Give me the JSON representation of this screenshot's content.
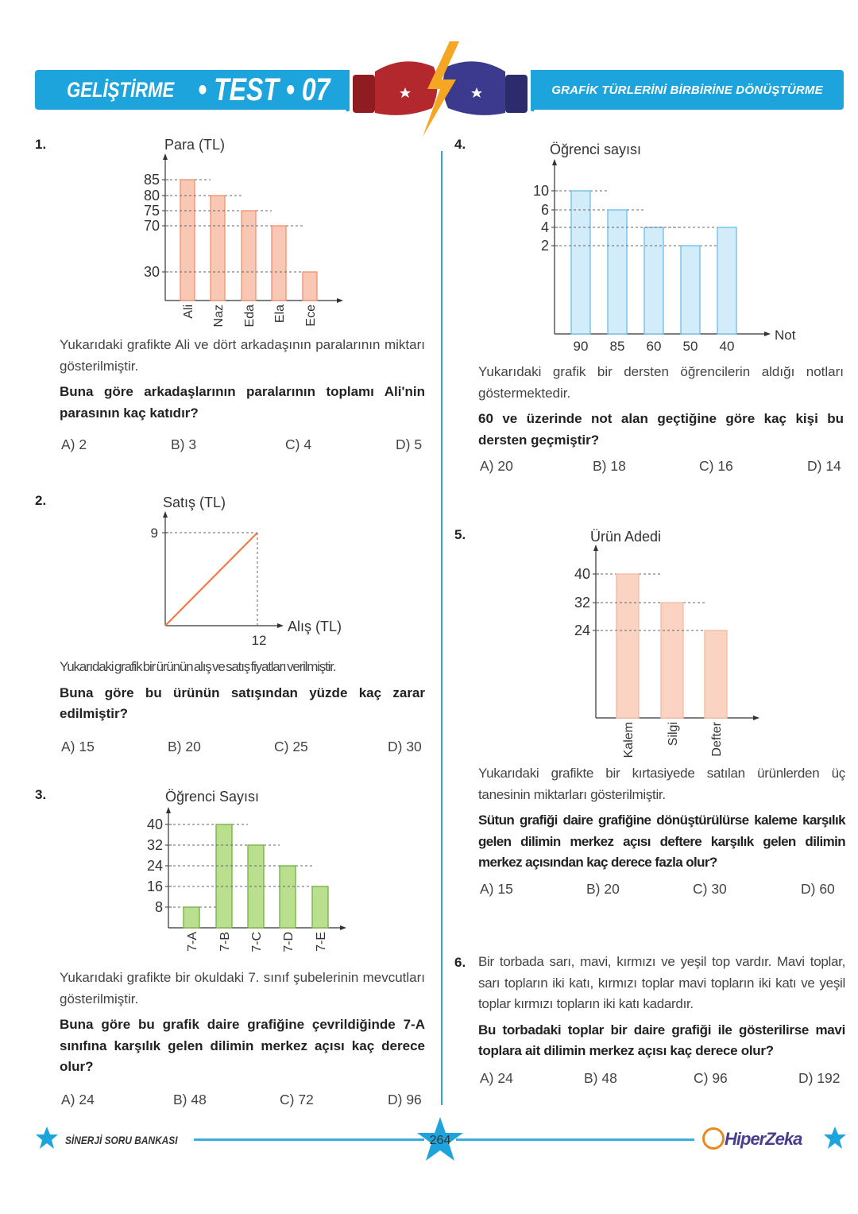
{
  "header": {
    "section": "GELİŞTİRME",
    "test": "• TEST • 07",
    "topic": "GRAFİK TÜRLERİNİ BİRBİRİNE DÖNÜŞTÜRME",
    "colors": {
      "band": "#1ea4dd",
      "glove_left": "#b3282d",
      "glove_right": "#3b3a8f",
      "bolt": "#f5a623"
    }
  },
  "questions": [
    {
      "number": "1.",
      "text": "Yukarıdaki grafikte Ali ve dört arkadaşının paralarının miktarı gösterilmiştir.",
      "question": "Buna göre arkadaşlarının paralarının toplamı Ali'nin parasının kaç katıdır?",
      "options": [
        "A) 2",
        "B) 3",
        "C) 4",
        "D) 5"
      ]
    },
    {
      "number": "2.",
      "text": "Yukarıdaki grafik bir ürünün alış ve satış fiyatları verilmiştir.",
      "question": "Buna göre bu ürünün satışından yüzde kaç zarar edilmiştir?",
      "options": [
        "A) 15",
        "B) 20",
        "C) 25",
        "D) 30"
      ]
    },
    {
      "number": "3.",
      "text": "Yukarıdaki grafikte bir okuldaki 7. sınıf şubelerinin mevcutları gösterilmiştir.",
      "question": "Buna göre bu grafik daire grafiğine çevrildiğinde 7-A sınıfına karşılık gelen dilimin merkez açısı kaç derece olur?",
      "options": [
        "A) 24",
        "B) 48",
        "C) 72",
        "D) 96"
      ]
    },
    {
      "number": "4.",
      "text": "Yukarıdaki grafik bir dersten öğrencilerin aldığı notları göstermektedir.",
      "question": "60 ve üzerinde not alan geçtiğine göre kaç kişi bu dersten geçmiştir?",
      "options": [
        "A) 20",
        "B) 18",
        "C) 16",
        "D) 14"
      ]
    },
    {
      "number": "5.",
      "text": "Yukarıdaki grafikte bir kırtasiyede satılan ürünlerden üç tanesinin miktarları gösterilmiştir.",
      "question": "Sütun grafiği daire grafiğine dönüştürülürse kaleme karşılık gelen dilimin merkez açısı deftere karşılık gelen dilimin merkez açısından kaç derece fazla olur?",
      "options": [
        "A) 15",
        "B) 20",
        "C) 30",
        "D) 60"
      ]
    },
    {
      "number": "6.",
      "text": "Bir torbada sarı, mavi, kırmızı ve yeşil top vardır. Mavi toplar, sarı topların iki katı, kırmızı toplar mavi topların iki katı ve yeşil toplar kırmızı topların iki katı kadardır.",
      "question": "Bu torbadaki toplar bir daire grafiği ile gösterilirse mavi toplara ait dilimin merkez açısı kaç derece olur?",
      "options": [
        "A) 24",
        "B) 48",
        "C) 96",
        "D) 192"
      ]
    }
  ],
  "chart_data": [
    {
      "type": "bar",
      "ylabel": "Para (TL)",
      "categories": [
        "Ali",
        "Naz",
        "Eda",
        "Ela",
        "Ece"
      ],
      "values": [
        85,
        80,
        75,
        70,
        30
      ],
      "yticks": [
        "85",
        "80",
        "75",
        "70",
        "30"
      ],
      "color": "#f9c8b4",
      "stroke": "#f0906c"
    },
    {
      "type": "line",
      "ylabel": "Satış (TL)",
      "xlabel": "Alış (TL)",
      "points": [
        [
          0,
          0
        ],
        [
          12,
          9
        ]
      ],
      "xticks": [
        "12"
      ],
      "yticks": [
        "9"
      ],
      "color": "#f07a4a"
    },
    {
      "type": "bar",
      "ylabel": "Öğrenci Sayısı",
      "categories": [
        "7-A",
        "7-B",
        "7-C",
        "7-D",
        "7-E"
      ],
      "values": [
        8,
        40,
        32,
        24,
        16
      ],
      "yticks": [
        "40",
        "32",
        "24",
        "16",
        "8"
      ],
      "color": "#b9df8f",
      "stroke": "#6fb13f"
    },
    {
      "type": "bar",
      "ylabel": "Öğrenci sayısı",
      "xlabel": "Not",
      "categories": [
        "90",
        "85",
        "60",
        "50",
        "40"
      ],
      "values": [
        10,
        6,
        4,
        2,
        4
      ],
      "yticks": [
        "10",
        "6",
        "4",
        "2"
      ],
      "color": "#d3ecf9",
      "stroke": "#6cbde8"
    },
    {
      "type": "bar",
      "ylabel": "Ürün Adedi",
      "categories": [
        "Kalem",
        "Silgi",
        "Defter"
      ],
      "values": [
        40,
        32,
        24
      ],
      "yticks": [
        "40",
        "32",
        "24"
      ],
      "color": "#fbd3c2",
      "stroke": "#f5b9a0"
    }
  ],
  "footer": {
    "book": "SİNERJİ SORU BANKASI",
    "page": "264",
    "brand": "HiperZeka",
    "colors": {
      "line": "#3aaede",
      "brand_orange": "#e98a1f",
      "brand_purple": "#4a3d8f"
    }
  }
}
